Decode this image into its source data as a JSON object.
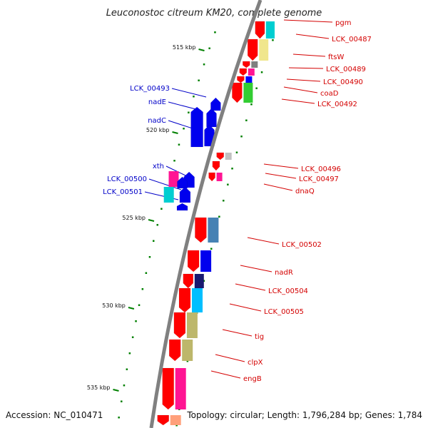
{
  "title": "Leuconostoc citreum KM20, complete genome",
  "footer": {
    "accession": "Accession: NC_010471",
    "summary": "Topology: circular; Length: 1,796,284 bp; Genes: 1,784"
  },
  "colors": {
    "backbone": "#808080",
    "forward_cds": "#ff0000",
    "reverse_cds": "#0000ee",
    "tick": "#008000",
    "plus_label": "#d40000",
    "minus_label": "#0000c8"
  },
  "ticks": [
    {
      "kbp": 515,
      "label": "515 kbp"
    },
    {
      "kbp": 520,
      "label": "520 kbp"
    },
    {
      "kbp": 525,
      "label": "525 kbp"
    },
    {
      "kbp": 530,
      "label": "530 kbp"
    },
    {
      "kbp": 535,
      "label": "535 kbp"
    }
  ],
  "genes_plus": [
    {
      "id": "pgm",
      "label": "pgm",
      "cog": "#00ced1"
    },
    {
      "id": "lck_00487",
      "label": "LCK_00487",
      "cog": "#00ced1"
    },
    {
      "id": "ftsw",
      "label": "ftsW",
      "cog": "#f0e68c"
    },
    {
      "id": "lck_00489",
      "label": "LCK_00489",
      "cog": "#808080"
    },
    {
      "id": "lck_00490",
      "label": "LCK_00490",
      "cog": "#ff1493"
    },
    {
      "id": "coad",
      "label": "coaD",
      "cog": "#0000ff"
    },
    {
      "id": "lck_00492",
      "label": "LCK_00492",
      "cog": "#32cd32"
    },
    {
      "id": "lck_00496",
      "label": "LCK_00496",
      "cog": "#c0c0c0"
    },
    {
      "id": "lck_00497",
      "label": "LCK_00497",
      "cog": "#ffffff"
    },
    {
      "id": "dnaq",
      "label": "dnaQ",
      "cog": "#ff1493"
    },
    {
      "id": "lck_00502",
      "label": "LCK_00502",
      "cog": "#4682b4"
    },
    {
      "id": "nadr",
      "label": "nadR",
      "cog": "#0000ee"
    },
    {
      "id": "lck_00504",
      "label": "LCK_00504",
      "cog": "#191970"
    },
    {
      "id": "lck_00505",
      "label": "LCK_00505",
      "cog": "#00bfff"
    },
    {
      "id": "tig",
      "label": "tig",
      "cog": "#bdb76b"
    },
    {
      "id": "clpx",
      "label": "clpX",
      "cog": "#bdb76b"
    },
    {
      "id": "engb",
      "label": "engB",
      "cog": "#ff1493"
    }
  ],
  "genes_minus": [
    {
      "id": "lck_00493",
      "label": "LCK_00493"
    },
    {
      "id": "nade",
      "label": "nadE"
    },
    {
      "id": "nadc",
      "label": "nadC"
    },
    {
      "id": "xth",
      "label": "xth"
    },
    {
      "id": "lck_00500",
      "label": "LCK_00500"
    },
    {
      "id": "lck_00501",
      "label": "LCK_00501"
    }
  ]
}
